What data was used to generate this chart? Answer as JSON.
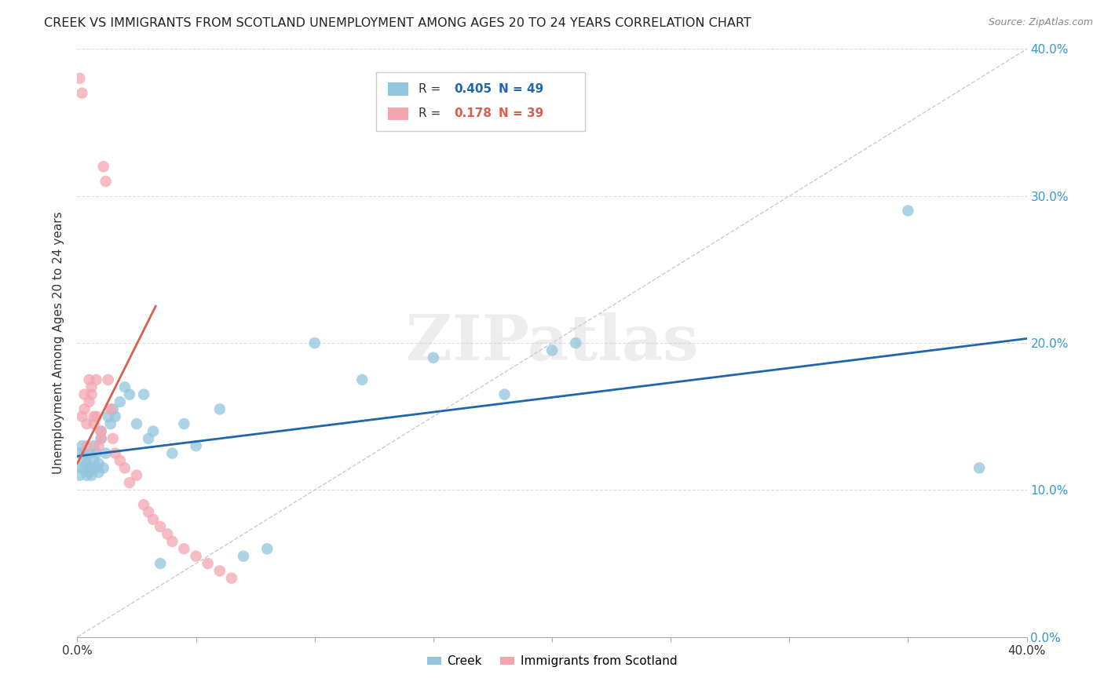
{
  "title": "CREEK VS IMMIGRANTS FROM SCOTLAND UNEMPLOYMENT AMONG AGES 20 TO 24 YEARS CORRELATION CHART",
  "source": "Source: ZipAtlas.com",
  "ylabel": "Unemployment Among Ages 20 to 24 years",
  "xlim": [
    0.0,
    0.4
  ],
  "ylim": [
    0.0,
    0.4
  ],
  "creek_color": "#92c5de",
  "scotland_color": "#f4a6b0",
  "creek_line_color": "#2166ac",
  "scotland_line_color": "#d6604d",
  "R_creek": 0.405,
  "N_creek": 49,
  "R_scotland": 0.178,
  "N_scotland": 39,
  "creek_x": [
    0.001,
    0.001,
    0.002,
    0.002,
    0.003,
    0.003,
    0.003,
    0.004,
    0.004,
    0.005,
    0.005,
    0.006,
    0.006,
    0.007,
    0.007,
    0.008,
    0.008,
    0.009,
    0.009,
    0.01,
    0.01,
    0.011,
    0.012,
    0.013,
    0.014,
    0.015,
    0.016,
    0.018,
    0.02,
    0.022,
    0.025,
    0.028,
    0.03,
    0.032,
    0.035,
    0.04,
    0.045,
    0.05,
    0.06,
    0.07,
    0.08,
    0.1,
    0.12,
    0.15,
    0.18,
    0.2,
    0.21,
    0.35,
    0.38
  ],
  "creek_y": [
    0.11,
    0.125,
    0.115,
    0.13,
    0.12,
    0.115,
    0.125,
    0.11,
    0.118,
    0.112,
    0.125,
    0.115,
    0.11,
    0.13,
    0.12,
    0.115,
    0.125,
    0.118,
    0.112,
    0.14,
    0.135,
    0.115,
    0.125,
    0.15,
    0.145,
    0.155,
    0.15,
    0.16,
    0.17,
    0.165,
    0.145,
    0.165,
    0.135,
    0.14,
    0.05,
    0.125,
    0.145,
    0.13,
    0.155,
    0.055,
    0.06,
    0.2,
    0.175,
    0.19,
    0.165,
    0.195,
    0.2,
    0.29,
    0.115
  ],
  "scotland_x": [
    0.001,
    0.002,
    0.002,
    0.003,
    0.003,
    0.004,
    0.004,
    0.005,
    0.005,
    0.006,
    0.006,
    0.007,
    0.007,
    0.008,
    0.008,
    0.009,
    0.01,
    0.01,
    0.011,
    0.012,
    0.013,
    0.014,
    0.015,
    0.016,
    0.018,
    0.02,
    0.022,
    0.025,
    0.028,
    0.03,
    0.032,
    0.035,
    0.038,
    0.04,
    0.045,
    0.05,
    0.055,
    0.06,
    0.065
  ],
  "scotland_y": [
    0.38,
    0.37,
    0.15,
    0.155,
    0.165,
    0.13,
    0.145,
    0.175,
    0.16,
    0.165,
    0.17,
    0.145,
    0.15,
    0.175,
    0.15,
    0.13,
    0.14,
    0.135,
    0.32,
    0.31,
    0.175,
    0.155,
    0.135,
    0.125,
    0.12,
    0.115,
    0.105,
    0.11,
    0.09,
    0.085,
    0.08,
    0.075,
    0.07,
    0.065,
    0.06,
    0.055,
    0.05,
    0.045,
    0.04
  ],
  "creek_line_x": [
    0.0,
    0.4
  ],
  "creek_line_y": [
    0.123,
    0.203
  ],
  "scot_line_x": [
    0.0,
    0.033
  ],
  "scot_line_y": [
    0.118,
    0.225
  ]
}
